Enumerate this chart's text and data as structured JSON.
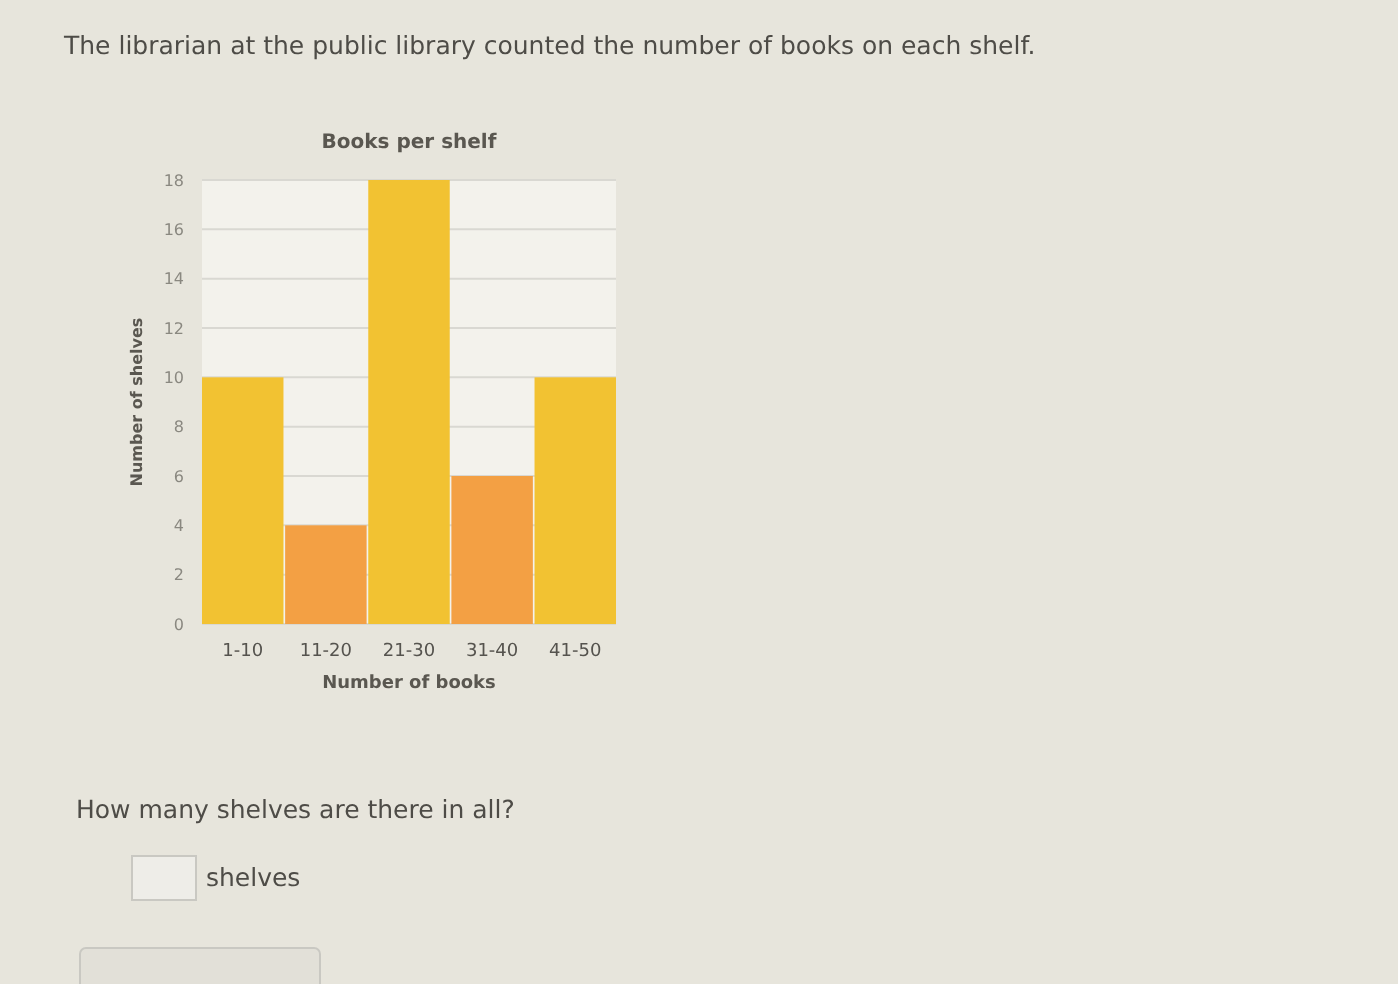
{
  "chart_data": {
    "type": "bar",
    "title": "Books per shelf",
    "xlabel": "Number of books",
    "ylabel": "Number of shelves",
    "categories": [
      "1-10",
      "11-20",
      "21-30",
      "31-40",
      "41-50"
    ],
    "values": [
      10,
      4,
      18,
      6,
      10
    ],
    "colors": [
      "#f2c232",
      "#f3a044",
      "#f2c232",
      "#f3a044",
      "#f2c232"
    ],
    "ylim": [
      0,
      18
    ],
    "yticks": [
      0,
      2,
      4,
      6,
      8,
      10,
      12,
      14,
      16,
      18
    ],
    "grid": "y",
    "annotations": [
      "The librarian at the public library counted the number of books on each shelf.",
      "How many shelves are there in all?",
      "shelves"
    ]
  }
}
